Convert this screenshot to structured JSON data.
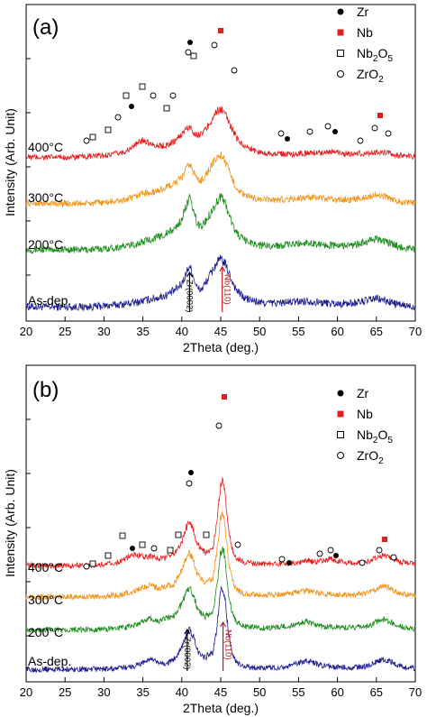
{
  "figure": {
    "legend": [
      {
        "symbol": "filled-circle",
        "label": "Zr",
        "sub": "",
        "color": "#000000"
      },
      {
        "symbol": "filled-square",
        "label": "Nb",
        "sub": "",
        "color": "#e02020"
      },
      {
        "symbol": "open-square",
        "label": "Nb",
        "sub": "2",
        "after": "O",
        "sub2": "5",
        "color": "#000000"
      },
      {
        "symbol": "open-circle",
        "label": "ZrO",
        "sub": "2",
        "color": "#000000"
      }
    ],
    "colors": {
      "As-dep.": "#1c1c8c",
      "200°C": "#1e8c1e",
      "300°C": "#f0961e",
      "400°C": "#e41e1e"
    }
  },
  "chart_data": [
    {
      "type": "line",
      "panel_label": "(a)",
      "xlabel": "2Theta (deg.)",
      "ylabel": "Intensity (Arb. Unit)",
      "xlim": [
        20,
        70
      ],
      "xticks": [
        20,
        25,
        30,
        35,
        40,
        45,
        50,
        55,
        60,
        65,
        70
      ],
      "series": [
        {
          "name": "As-dep.",
          "x": [
            28,
            30,
            32,
            34,
            36,
            37,
            38,
            39,
            40,
            40.5,
            41,
            41.5,
            42,
            42.5,
            43,
            43.5,
            44,
            44.5,
            45,
            45.5,
            46,
            46.5,
            47,
            48,
            50,
            52,
            54,
            56,
            58,
            60,
            62,
            64,
            65,
            66,
            68,
            70
          ],
          "y": [
            0.22,
            0.26,
            0.32,
            0.4,
            0.55,
            0.62,
            0.72,
            0.9,
            1.2,
            1.6,
            2.0,
            1.5,
            1.0,
            0.95,
            1.2,
            1.5,
            1.8,
            2.1,
            2.25,
            2.1,
            1.7,
            1.3,
            0.95,
            0.6,
            0.4,
            0.38,
            0.42,
            0.48,
            0.4,
            0.35,
            0.38,
            0.5,
            0.58,
            0.5,
            0.3,
            0.22
          ]
        },
        {
          "name": "200°C",
          "x": [
            28,
            30,
            32,
            34,
            36,
            37,
            38,
            39,
            40,
            40.5,
            41,
            41.5,
            42,
            42.5,
            43,
            43.5,
            44,
            44.5,
            45,
            45.5,
            46,
            46.5,
            47,
            48,
            50,
            52,
            54,
            56,
            58,
            60,
            62,
            64,
            65,
            66,
            68,
            70
          ],
          "y": [
            0.22,
            0.26,
            0.34,
            0.45,
            0.7,
            0.8,
            0.95,
            1.15,
            1.6,
            2.2,
            2.6,
            2.0,
            1.4,
            1.3,
            1.5,
            1.8,
            2.1,
            2.4,
            2.7,
            2.45,
            1.9,
            1.4,
            1.0,
            0.65,
            0.42,
            0.4,
            0.45,
            0.55,
            0.45,
            0.4,
            0.42,
            0.6,
            0.72,
            0.6,
            0.35,
            0.24
          ]
        },
        {
          "name": "300°C",
          "x": [
            28,
            30,
            32,
            34,
            35,
            36,
            37,
            38,
            39,
            40,
            40.5,
            41,
            41.5,
            42,
            42.5,
            43,
            43.5,
            44,
            44.5,
            45,
            45.5,
            46,
            46.5,
            47,
            48,
            50,
            52,
            54,
            56,
            58,
            60,
            62,
            64,
            65,
            66,
            68,
            70
          ],
          "y": [
            0.2,
            0.25,
            0.32,
            0.5,
            0.75,
            0.7,
            0.85,
            1.0,
            1.2,
            1.5,
            1.9,
            2.2,
            1.8,
            1.4,
            1.35,
            1.6,
            1.9,
            2.2,
            2.5,
            2.65,
            2.4,
            1.9,
            1.4,
            1.0,
            0.6,
            0.4,
            0.38,
            0.42,
            0.5,
            0.45,
            0.38,
            0.4,
            0.55,
            0.62,
            0.55,
            0.3,
            0.2
          ]
        },
        {
          "name": "400°C",
          "x": [
            26,
            28,
            30,
            32,
            33,
            34,
            35,
            36,
            37,
            38,
            39,
            40,
            40.5,
            41,
            41.5,
            42,
            42.5,
            43,
            43.5,
            44,
            44.5,
            45,
            45.5,
            46,
            46.5,
            47,
            48,
            50,
            52,
            54,
            56,
            58,
            59,
            60,
            62,
            64,
            65,
            66,
            68,
            70
          ],
          "y": [
            0.08,
            0.12,
            0.18,
            0.3,
            0.45,
            0.75,
            1.05,
            0.85,
            0.7,
            0.75,
            0.95,
            1.35,
            1.65,
            1.75,
            1.5,
            1.3,
            1.35,
            1.6,
            1.9,
            2.3,
            2.6,
            2.75,
            2.5,
            2.1,
            1.6,
            1.2,
            0.7,
            0.35,
            0.28,
            0.25,
            0.3,
            0.35,
            0.4,
            0.32,
            0.25,
            0.3,
            0.38,
            0.32,
            0.18,
            0.12
          ]
        }
      ],
      "reference_lines": [
        {
          "label": "Zr(0002)",
          "x": 41.0,
          "color": "#000000"
        },
        {
          "label": "Nb(110)",
          "x": 45.2,
          "color": "#c01818"
        }
      ]
    },
    {
      "type": "line",
      "panel_label": "(b)",
      "xlabel": "2Theta (deg.)",
      "ylabel": "Intensity (Arb. Unit)",
      "xlim": [
        20,
        70
      ],
      "xticks": [
        20,
        25,
        30,
        35,
        40,
        45,
        50,
        55,
        60,
        65,
        70
      ],
      "series": [
        {
          "name": "As-dep.",
          "x": [
            28,
            30,
            32,
            34,
            35,
            36,
            37,
            38,
            39,
            40,
            40.5,
            41,
            41.5,
            42,
            43,
            44,
            44.5,
            45,
            45.3,
            45.6,
            46,
            46.5,
            47,
            48,
            50,
            52,
            54,
            55,
            56,
            57,
            58,
            60,
            62,
            64,
            65,
            66,
            67,
            68,
            70
          ],
          "y": [
            0.1,
            0.12,
            0.16,
            0.3,
            0.5,
            0.7,
            0.45,
            0.4,
            0.7,
            1.4,
            2.0,
            2.4,
            2.0,
            1.2,
            0.8,
            1.1,
            2.5,
            4.6,
            4.9,
            4.0,
            2.2,
            1.0,
            0.5,
            0.25,
            0.18,
            0.2,
            0.3,
            0.45,
            0.6,
            0.45,
            0.3,
            0.22,
            0.2,
            0.3,
            0.55,
            0.7,
            0.5,
            0.3,
            0.15
          ]
        },
        {
          "name": "200°C",
          "x": [
            28,
            30,
            32,
            34,
            35,
            36,
            37,
            38,
            39,
            40,
            40.5,
            41,
            41.5,
            42,
            43,
            44,
            44.5,
            45,
            45.3,
            45.6,
            46,
            46.5,
            47,
            48,
            50,
            52,
            54,
            55,
            56,
            57,
            58,
            60,
            62,
            64,
            65,
            66,
            67,
            68,
            70
          ],
          "y": [
            0.1,
            0.12,
            0.18,
            0.35,
            0.55,
            0.75,
            0.55,
            0.8,
            0.9,
            1.6,
            2.2,
            2.6,
            2.1,
            1.3,
            0.85,
            1.1,
            2.6,
            4.6,
            4.9,
            4.0,
            2.1,
            1.0,
            0.55,
            0.28,
            0.2,
            0.22,
            0.32,
            0.45,
            0.55,
            0.42,
            0.3,
            0.24,
            0.22,
            0.32,
            0.55,
            0.7,
            0.5,
            0.3,
            0.15
          ]
        },
        {
          "name": "300°C",
          "x": [
            28,
            30,
            32,
            34,
            35,
            36,
            37,
            38,
            39,
            40,
            40.5,
            41,
            41.5,
            42,
            43,
            44,
            44.5,
            45,
            45.3,
            45.6,
            46,
            46.5,
            47,
            48,
            50,
            52,
            54,
            55,
            56,
            57,
            58,
            60,
            62,
            64,
            65,
            66,
            67,
            68,
            70
          ],
          "y": [
            0.12,
            0.15,
            0.22,
            0.45,
            0.65,
            0.8,
            0.6,
            0.75,
            0.85,
            1.7,
            2.3,
            2.7,
            2.2,
            1.4,
            0.9,
            1.2,
            2.7,
            4.7,
            5.0,
            4.1,
            2.2,
            1.05,
            0.55,
            0.3,
            0.22,
            0.24,
            0.32,
            0.42,
            0.48,
            0.38,
            0.3,
            0.25,
            0.24,
            0.34,
            0.6,
            0.75,
            0.55,
            0.32,
            0.16
          ]
        },
        {
          "name": "400°C",
          "x": [
            26,
            28,
            30,
            32,
            33,
            34,
            35,
            36,
            37,
            38,
            39,
            40,
            40.5,
            41,
            41.5,
            42,
            43,
            44,
            44.5,
            45,
            45.3,
            45.6,
            46,
            46.5,
            47,
            48,
            50,
            52,
            54,
            56,
            57,
            58,
            59,
            60,
            62,
            64,
            65,
            66,
            67,
            68,
            70
          ],
          "y": [
            0.05,
            0.08,
            0.12,
            0.25,
            0.5,
            0.75,
            0.55,
            0.6,
            0.45,
            0.5,
            0.75,
            1.4,
            2.2,
            2.6,
            2.1,
            1.3,
            0.8,
            1.05,
            2.6,
            4.7,
            5.0,
            4.1,
            2.1,
            1.0,
            0.5,
            0.25,
            0.15,
            0.15,
            0.2,
            0.35,
            0.25,
            0.3,
            0.45,
            0.3,
            0.18,
            0.3,
            0.55,
            0.65,
            0.45,
            0.25,
            0.12
          ]
        }
      ],
      "reference_lines": [
        {
          "label": "Zr(0002)",
          "x": 40.7,
          "color": "#000000"
        },
        {
          "label": "Nb(110)",
          "x": 45.3,
          "color": "#c01818"
        }
      ]
    }
  ]
}
